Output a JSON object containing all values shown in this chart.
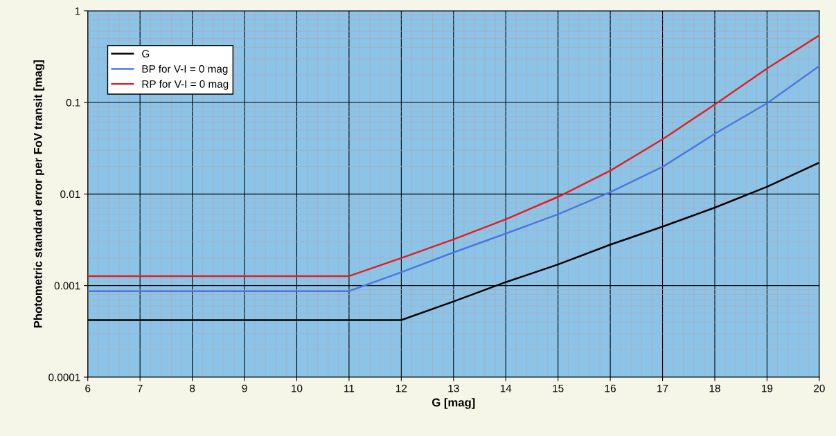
{
  "chart_data": {
    "type": "line",
    "xlabel": "G [mag]",
    "ylabel": "Photometric standard error per FoV transit [mag]",
    "x": [
      6,
      11,
      12,
      13,
      14,
      15,
      16,
      17,
      18,
      19,
      20
    ],
    "series": [
      {
        "name": "G",
        "color": "#000000",
        "values": [
          0.00042,
          0.00042,
          0.00042,
          0.00067,
          0.00109,
          0.0017,
          0.0028,
          0.0044,
          0.0071,
          0.012,
          0.022
        ]
      },
      {
        "name": "BP for V-I = 0 mag",
        "color": "#4a78e0",
        "values": [
          0.00087,
          0.00087,
          0.0014,
          0.0023,
          0.0037,
          0.006,
          0.0105,
          0.0198,
          0.0455,
          0.098,
          0.25
        ]
      },
      {
        "name": "RP for V-I = 0 mag",
        "color": "#e02020",
        "values": [
          0.00127,
          0.00127,
          0.002,
          0.0032,
          0.0053,
          0.0093,
          0.018,
          0.0396,
          0.095,
          0.235,
          0.54
        ]
      }
    ],
    "log": "y",
    "xlim": [
      6,
      20
    ],
    "ylim": [
      0.0001,
      1
    ],
    "xticks": [
      6,
      7,
      8,
      9,
      10,
      11,
      12,
      13,
      14,
      15,
      16,
      17,
      18,
      19,
      20
    ],
    "yticks": [
      {
        "value": 0.0001,
        "label": "0.0001"
      },
      {
        "value": 0.001,
        "label": "0.001"
      },
      {
        "value": 0.01,
        "label": "0.01"
      },
      {
        "value": 0.1,
        "label": "0.1"
      },
      {
        "value": 1,
        "label": "1"
      }
    ],
    "grid": true,
    "legend": "top left",
    "marker": "none",
    "line_style": "solid"
  }
}
